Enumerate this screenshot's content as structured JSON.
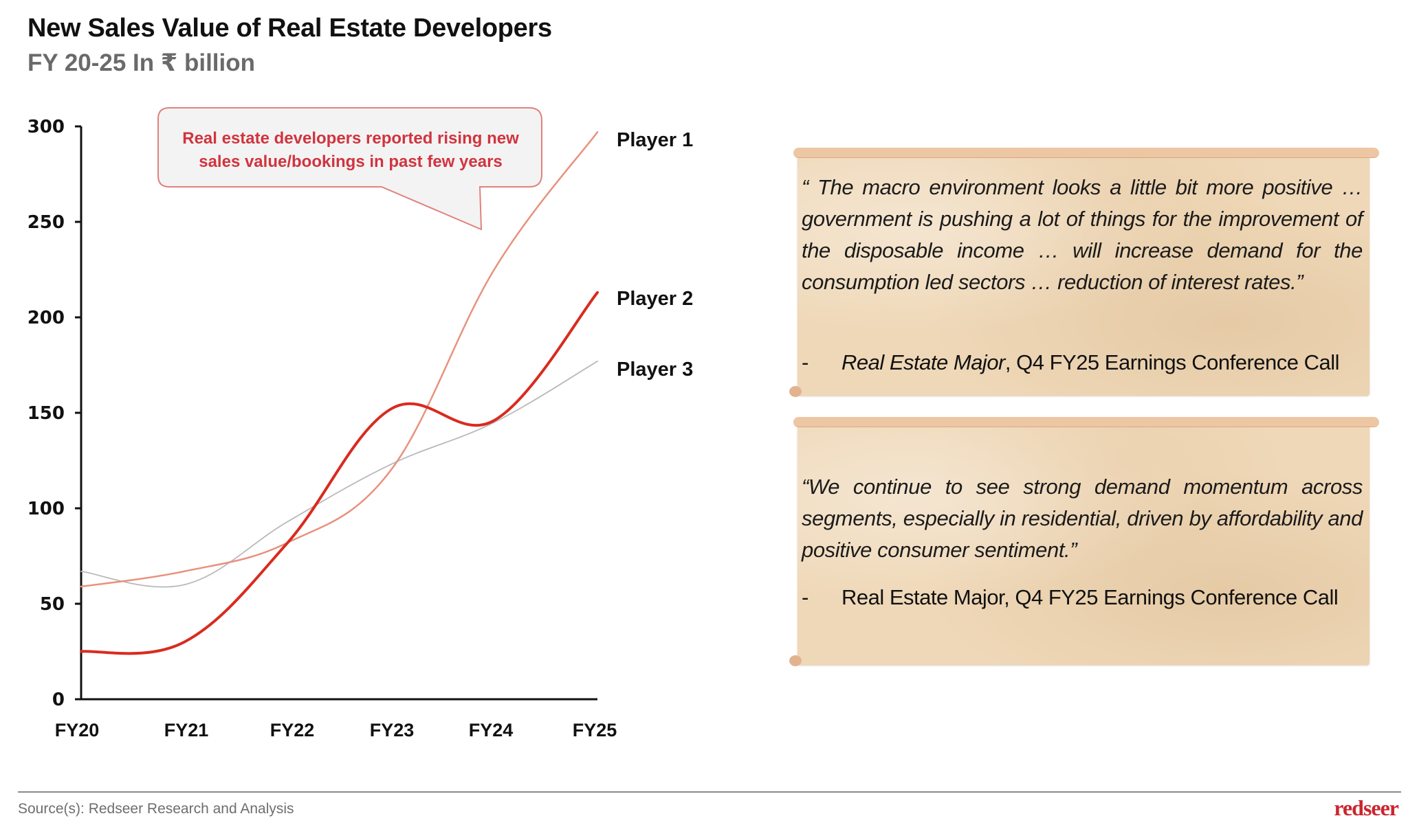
{
  "header": {
    "title": "New Sales Value of Real Estate Developers",
    "subtitle": "FY 20-25 In ₹ billion"
  },
  "chart_data": {
    "type": "line",
    "title": "New Sales Value of Real Estate Developers",
    "subtitle": "FY 20-25 In ₹ billion",
    "xlabel": "",
    "ylabel": "",
    "x": [
      "FY20",
      "FY21",
      "FY22",
      "FY23",
      "FY24",
      "FY25"
    ],
    "ylim": [
      0,
      300
    ],
    "yticks": [
      0,
      50,
      100,
      150,
      200,
      250,
      300
    ],
    "grid": false,
    "legend": "right (direct labels at line ends)",
    "series": [
      {
        "name": "Player 1",
        "color": "#e8917d",
        "values": [
          59,
          67,
          82,
          120,
          225,
          297
        ]
      },
      {
        "name": "Player 2",
        "color": "#d92b1f",
        "values": [
          25,
          30,
          82,
          152,
          146,
          213
        ]
      },
      {
        "name": "Player 3",
        "color": "#b9b9b9",
        "values": [
          67,
          60,
          93,
          123,
          145,
          177
        ]
      }
    ],
    "annotation": {
      "lines": [
        "Real estate developers reported rising new",
        "sales value/bookings in past few years"
      ],
      "color": "#d0343f",
      "border_color": "#e0827c",
      "fill": "#f4f3f3"
    }
  },
  "quotes": [
    {
      "text": "“ The macro environment looks a little bit more positive … government is pushing a lot of things for the improvement of the disposable income … will increase demand for the consumption led sectors … reduction of interest rates.”",
      "dash": "-",
      "attribution_italic": "Real Estate Major",
      "attribution_rest": ", Q4 FY25 Earnings Conference Call"
    },
    {
      "text": "“We continue to see strong demand momentum across segments, especially in residential, driven by affordability and positive consumer sentiment.”",
      "dash": "-",
      "attribution_italic": "",
      "attribution_rest": "Real Estate Major, Q4 FY25 Earnings Conference Call"
    }
  ],
  "footer": {
    "source": "Source(s): Redseer Research and Analysis",
    "logo": "redseer"
  },
  "colors": {
    "accent": "#d92b1f",
    "logo": "#c9262f",
    "panel": "#efd8b8"
  }
}
